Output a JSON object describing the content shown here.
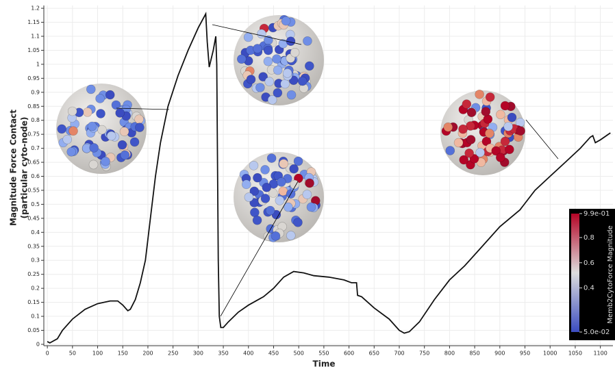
{
  "chart_data": {
    "type": "line",
    "x_label": "Time",
    "y_label": [
      "Magnitude Force Contact",
      "(particular cyto-node)"
    ],
    "x": [
      0,
      5,
      20,
      30,
      50,
      75,
      100,
      125,
      140,
      150,
      160,
      165,
      175,
      185,
      195,
      205,
      215,
      225,
      240,
      260,
      280,
      300,
      315,
      318,
      322,
      330,
      335,
      337,
      340,
      342,
      345,
      350,
      360,
      380,
      400,
      430,
      450,
      470,
      490,
      510,
      530,
      560,
      590,
      605,
      615,
      617,
      625,
      650,
      680,
      700,
      710,
      720,
      740,
      770,
      800,
      830,
      860,
      900,
      940,
      970,
      1000,
      1030,
      1060,
      1080,
      1085,
      1090,
      1100,
      1120
    ],
    "values": [
      0.01,
      0.005,
      0.02,
      0.05,
      0.09,
      0.125,
      0.145,
      0.155,
      0.155,
      0.14,
      0.12,
      0.125,
      0.16,
      0.22,
      0.3,
      0.45,
      0.6,
      0.72,
      0.85,
      0.96,
      1.05,
      1.13,
      1.18,
      1.08,
      0.99,
      1.05,
      1.1,
      1.0,
      0.3,
      0.1,
      0.06,
      0.06,
      0.08,
      0.115,
      0.14,
      0.17,
      0.2,
      0.24,
      0.26,
      0.255,
      0.245,
      0.24,
      0.23,
      0.22,
      0.22,
      0.175,
      0.17,
      0.13,
      0.09,
      0.05,
      0.04,
      0.045,
      0.08,
      0.16,
      0.23,
      0.28,
      0.34,
      0.42,
      0.48,
      0.55,
      0.6,
      0.65,
      0.7,
      0.74,
      0.745,
      0.72,
      0.73,
      0.755
    ],
    "color": "#111111",
    "xlim": [
      -7,
      1125
    ],
    "xticks": [
      0,
      50,
      100,
      150,
      200,
      250,
      300,
      350,
      400,
      450,
      500,
      550,
      600,
      650,
      700,
      750,
      800,
      850,
      900,
      950,
      1000,
      1050,
      1100
    ],
    "ylim": [
      -0.005,
      1.21
    ],
    "yticks": [
      0,
      0.05,
      0.1,
      0.15,
      0.2,
      0.25,
      0.3,
      0.35,
      0.4,
      0.45,
      0.5,
      0.55,
      0.6,
      0.65,
      0.7,
      0.75,
      0.8,
      0.85,
      0.9,
      0.95,
      1,
      1.05,
      1.1,
      1.15,
      1.2
    ],
    "grid": true,
    "colorbar": {
      "title": "Memb2CytoForce Magnitude",
      "lim": [
        0.05,
        0.99
      ],
      "ticks": [
        {
          "value": 0.99,
          "label": "9.9e-01"
        },
        0.8,
        0.6,
        0.4,
        {
          "value": 0.05,
          "label": "5.0e-02"
        }
      ],
      "colors": [
        "#3b4cc0",
        "#dddddd",
        "#b40426"
      ]
    }
  }
}
